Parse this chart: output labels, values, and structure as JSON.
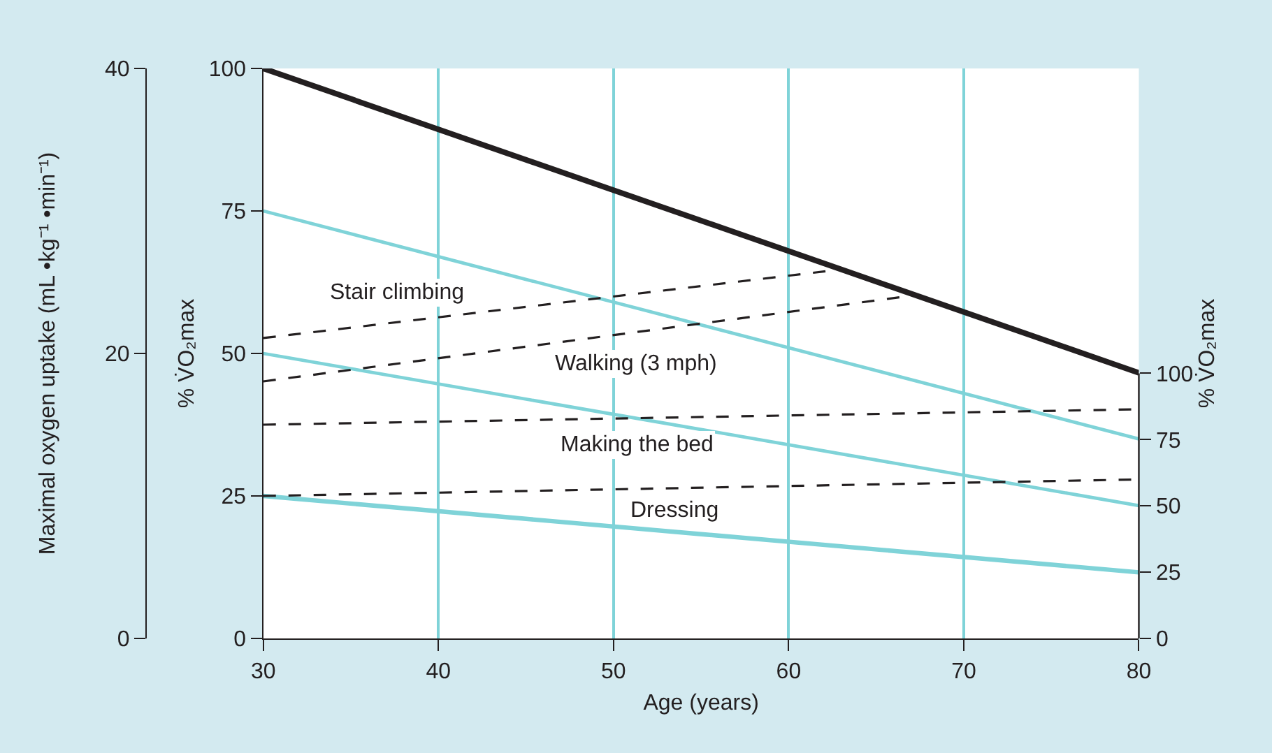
{
  "chart_data": {
    "type": "line",
    "xlabel": "Age (years)",
    "ylabel": "% V̇O₂max",
    "y2label": "Maximal oxygen uptake (mL •kg⁻¹ •min⁻¹)",
    "y3label": "% V̇O₂max",
    "xlim": [
      30,
      80
    ],
    "xticks": [
      30,
      40,
      50,
      60,
      70,
      80
    ],
    "ylim": [
      0,
      100
    ],
    "yticks": [
      0,
      25,
      50,
      75,
      100
    ],
    "y2lim": [
      0,
      40
    ],
    "y2ticks": [
      0,
      20,
      40
    ],
    "y3lim": [
      0,
      215
    ],
    "y3ticks": [
      0,
      25,
      50,
      75,
      100
    ],
    "grid": "x",
    "legend": false,
    "marker": "none",
    "series": [
      {
        "color": "#231f20",
        "x": [
          30,
          80
        ],
        "values": [
          100,
          46.6
        ],
        "line_style": "solid"
      },
      {
        "color": "#7fd3d8",
        "x": [
          30,
          80
        ],
        "values": [
          75,
          35
        ],
        "line_style": "solid"
      },
      {
        "color": "#7fd3d8",
        "x": [
          30,
          80
        ],
        "values": [
          50,
          23.3
        ],
        "line_style": "solid"
      },
      {
        "color": "#7fd3d8",
        "x": [
          30,
          80
        ],
        "values": [
          25,
          11.6
        ],
        "line_style": "solid"
      },
      {
        "name": "Stair climbing",
        "color": "#231f20",
        "x": [
          30,
          62.9
        ],
        "values": [
          52.7,
          64.7
        ],
        "line_style": "dashed"
      },
      {
        "name": "Walking (3 mph)",
        "color": "#231f20",
        "x": [
          30,
          66.7
        ],
        "values": [
          45.1,
          60.0
        ],
        "line_style": "dashed"
      },
      {
        "name": "Making the bed",
        "color": "#231f20",
        "x": [
          30,
          80
        ],
        "values": [
          37.5,
          40.2
        ],
        "line_style": "dashed"
      },
      {
        "name": "Dressing",
        "color": "#231f20",
        "x": [
          30,
          80
        ],
        "values": [
          25.0,
          27.9
        ],
        "line_style": "dashed"
      }
    ]
  }
}
